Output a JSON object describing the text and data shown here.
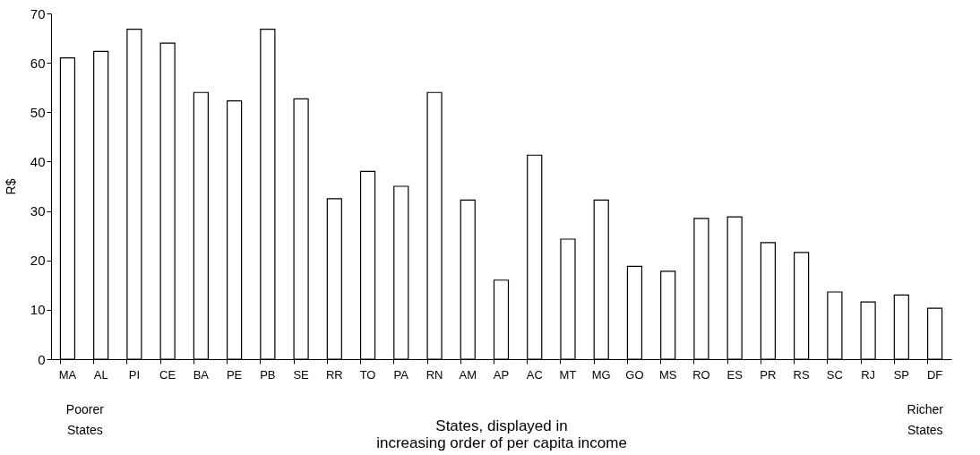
{
  "chart_data": {
    "type": "bar",
    "ylabel": "R$",
    "xlabel": "States, displayed in\nincreasing order of per capita income",
    "categories": [
      "MA",
      "AL",
      "PI",
      "CE",
      "BA",
      "PE",
      "PB",
      "SE",
      "RR",
      "TO",
      "PA",
      "RN",
      "AM",
      "AP",
      "AC",
      "MT",
      "MG",
      "GO",
      "MS",
      "RO",
      "ES",
      "PR",
      "RS",
      "SC",
      "RJ",
      "SP",
      "DF"
    ],
    "values": [
      61,
      62.3,
      66.8,
      64,
      54,
      52.3,
      66.8,
      52.7,
      32.5,
      38,
      35,
      54,
      32.2,
      16,
      41.3,
      24.3,
      32.2,
      18.8,
      17.8,
      28.5,
      28.8,
      23.6,
      21.6,
      13.6,
      11.6,
      13,
      10.3
    ],
    "color": "#ffffff",
    "ylim": [
      0,
      70
    ],
    "yticks": [
      0,
      10,
      20,
      30,
      40,
      50,
      60,
      70
    ],
    "grid": false,
    "annotations": [
      "Poorer\nStates",
      "Richer\nStates"
    ]
  }
}
